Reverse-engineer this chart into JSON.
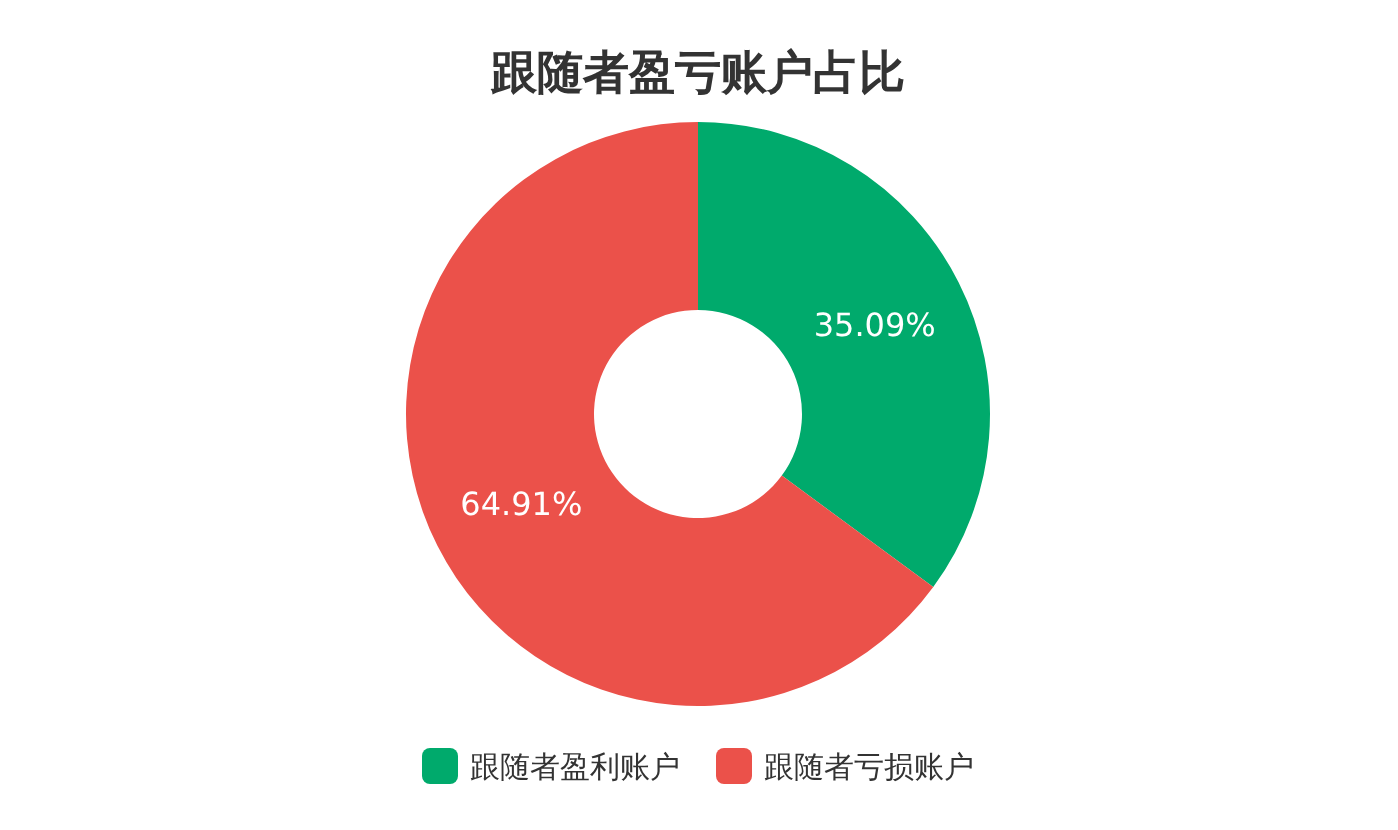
{
  "chart_data": {
    "type": "donut",
    "title": "跟随者盈亏账户占比",
    "categories": [
      "跟随者盈利账户",
      "跟随者亏损账户"
    ],
    "values": [
      35.09,
      64.91
    ],
    "colors": [
      "#00aa6c",
      "#eb514a"
    ],
    "value_labels": [
      "35.09%",
      "64.91%"
    ],
    "legend": "bottom"
  }
}
